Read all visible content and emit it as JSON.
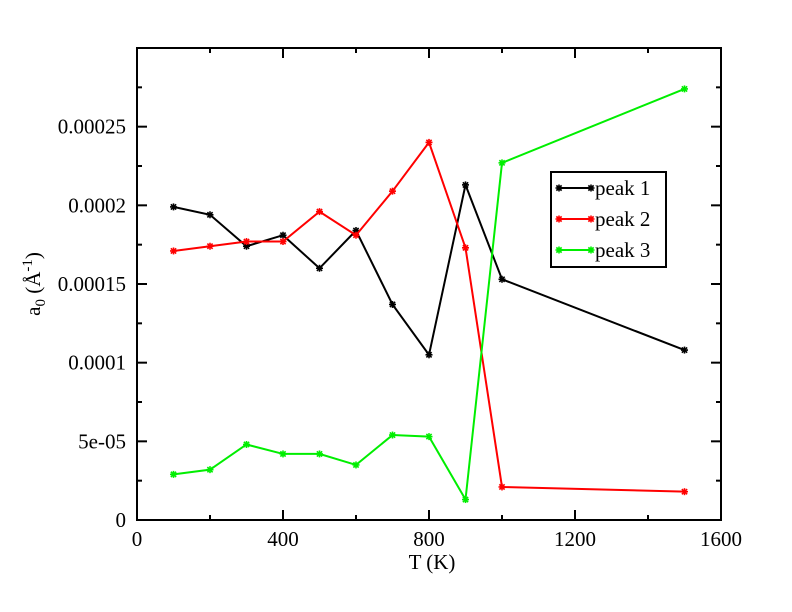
{
  "chart_data": {
    "type": "line",
    "title": "",
    "xlabel": "T (K)",
    "ylabel": {
      "base": "a",
      "sub": "0",
      "units_open": "(",
      "units_letter": "Å",
      "units_sup": "-1",
      "units_close": ")"
    },
    "xlim": [
      0,
      1600
    ],
    "ylim": [
      0,
      0.0003
    ],
    "xticks": [
      0,
      400,
      800,
      1200,
      1600
    ],
    "xtick_labels": [
      "0",
      "400",
      "800",
      "1200",
      "1600"
    ],
    "yticks": [
      0,
      5e-05,
      0.0001,
      0.00015,
      0.0002,
      0.00025
    ],
    "ytick_labels": [
      "0",
      "5e-05",
      "0.0001",
      "0.00015",
      "0.0002",
      "0.00025"
    ],
    "grid": false,
    "legend_position": "right",
    "series": [
      {
        "name": "peak 1",
        "color": "#000000",
        "x": [
          100,
          200,
          300,
          400,
          500,
          600,
          700,
          800,
          900,
          1000,
          1500
        ],
        "y": [
          0.000199,
          0.000194,
          0.000174,
          0.000181,
          0.00016,
          0.000184,
          0.000137,
          0.000105,
          0.000213,
          0.000153,
          0.000108
        ]
      },
      {
        "name": "peak 2",
        "color": "#ff0000",
        "x": [
          100,
          200,
          300,
          400,
          500,
          600,
          700,
          800,
          900,
          1000,
          1500
        ],
        "y": [
          0.000171,
          0.000174,
          0.000177,
          0.000177,
          0.000196,
          0.000181,
          0.000209,
          0.00024,
          0.000173,
          2.1e-05,
          1.8e-05
        ]
      },
      {
        "name": "peak 3",
        "color": "#00ee00",
        "x": [
          100,
          200,
          300,
          400,
          500,
          600,
          700,
          800,
          900,
          1000,
          1500
        ],
        "y": [
          2.9e-05,
          3.2e-05,
          4.8e-05,
          4.2e-05,
          4.2e-05,
          3.5e-05,
          5.4e-05,
          5.3e-05,
          1.3e-05,
          0.000227,
          0.000274
        ]
      }
    ]
  }
}
